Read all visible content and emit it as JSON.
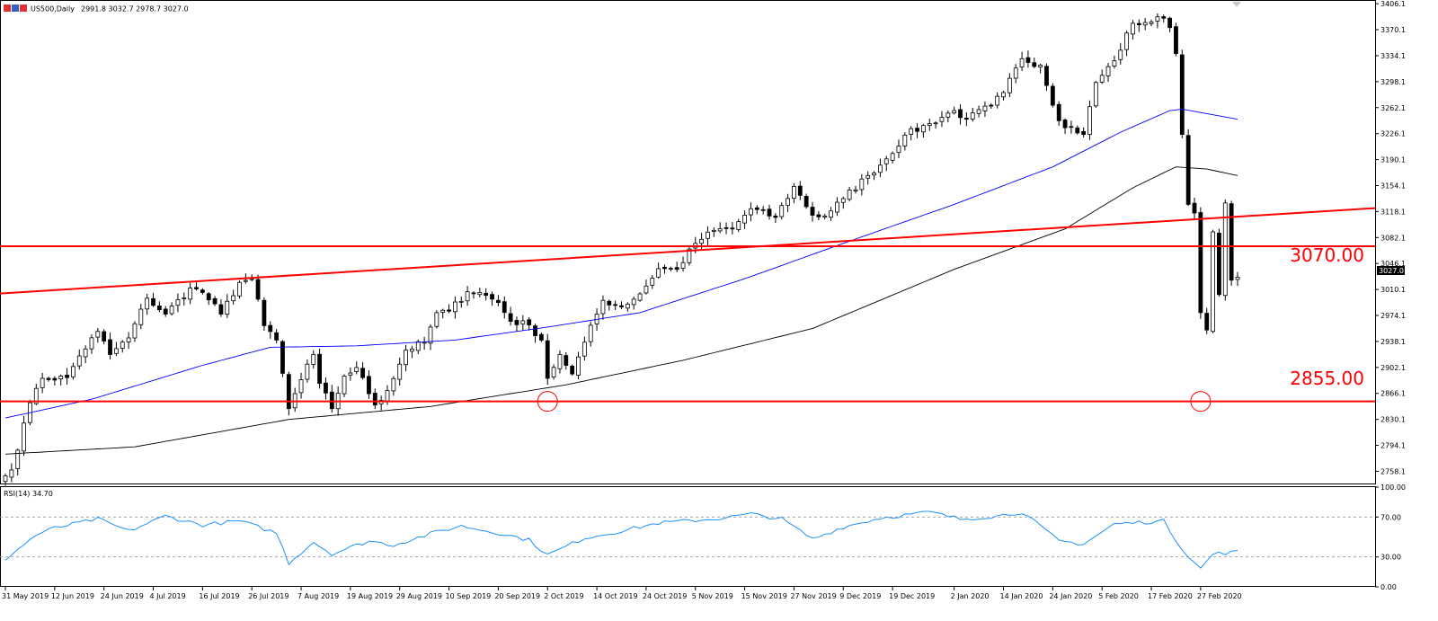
{
  "header": {
    "symbol_timeframe": "US500,Daily",
    "ohlc": "2991.8 3032.7 2978.7 3027.0"
  },
  "rsi_header": "RSI(14) 34.70",
  "price_axis_ticks": [
    "3406.1",
    "3370.1",
    "3334.1",
    "3298.1",
    "3262.1",
    "3226.1",
    "3190.1",
    "3154.1",
    "3118.1",
    "3082.1",
    "3046.1",
    "3010.1",
    "2974.1",
    "2938.1",
    "2902.1",
    "2866.1",
    "2830.1",
    "2794.1",
    "2758.1"
  ],
  "rsi_axis_ticks": [
    "100.00",
    "70.00",
    "30.00",
    "0.00"
  ],
  "current_price_label": "3027.0",
  "date_labels": [
    "31 May 2019",
    "12 Jun 2019",
    "24 Jun 2019",
    "4 Jul 2019",
    "16 Jul 2019",
    "26 Jul 2019",
    "7 Aug 2019",
    "19 Aug 2019",
    "29 Aug 2019",
    "10 Sep 2019",
    "20 Sep 2019",
    "2 Oct 2019",
    "14 Oct 2019",
    "24 Oct 2019",
    "5 Nov 2019",
    "15 Nov 2019",
    "27 Nov 2019",
    "9 Dec 2019",
    "19 Dec 2019",
    "2 Jan 2020",
    "14 Jan 2020",
    "24 Jan 2020",
    "5 Feb 2020",
    "17 Feb 2020",
    "27 Feb 2020"
  ],
  "annotations": {
    "resistance_label": "3070.00",
    "support_label": "2855.00"
  },
  "colors": {
    "annotation": "#ff0000",
    "ma_fast": "#0000ff",
    "ma_slow": "#000000",
    "rsi": "#1e90ff",
    "candle": "#000000"
  },
  "chart_data": {
    "type": "candlestick",
    "y_range": [
      2740,
      3410
    ],
    "rsi_range": [
      0,
      100
    ],
    "rsi_levels": [
      30,
      70
    ],
    "horizontal_levels": [
      3070,
      2855
    ],
    "trendline": {
      "from": [
        "31 May 2019",
        3005
      ],
      "to": [
        "6 Mar 2020",
        3111
      ]
    },
    "close_key": [
      [
        "31 May 2019",
        2752
      ],
      [
        "3 Jun 2019",
        2760
      ],
      [
        "5 Jun 2019",
        2825
      ],
      [
        "7 Jun 2019",
        2873
      ],
      [
        "10 Jun 2019",
        2887
      ],
      [
        "14 Jun 2019",
        2888
      ],
      [
        "18 Jun 2019",
        2918
      ],
      [
        "21 Jun 2019",
        2952
      ],
      [
        "25 Jun 2019",
        2920
      ],
      [
        "28 Jun 2019",
        2943
      ],
      [
        "3 Jul 2019",
        2998
      ],
      [
        "8 Jul 2019",
        2976
      ],
      [
        "12 Jul 2019",
        3012
      ],
      [
        "16 Jul 2019",
        3006
      ],
      [
        "19 Jul 2019",
        2976
      ],
      [
        "24 Jul 2019",
        3020
      ],
      [
        "26 Jul 2019",
        3025
      ],
      [
        "30 Jul 2019",
        2960
      ],
      [
        "1 Aug 2019",
        2940
      ],
      [
        "5 Aug 2019",
        2845
      ],
      [
        "7 Aug 2019",
        2885
      ],
      [
        "9 Aug 2019",
        2920
      ],
      [
        "12 Aug 2019",
        2880
      ],
      [
        "14 Aug 2019",
        2845
      ],
      [
        "16 Aug 2019",
        2890
      ],
      [
        "20 Aug 2019",
        2902
      ],
      [
        "23 Aug 2019",
        2850
      ],
      [
        "27 Aug 2019",
        2870
      ],
      [
        "30 Aug 2019",
        2926
      ],
      [
        "4 Sep 2019",
        2937
      ],
      [
        "6 Sep 2019",
        2978
      ],
      [
        "10 Sep 2019",
        2980
      ],
      [
        "13 Sep 2019",
        3007
      ],
      [
        "17 Sep 2019",
        3006
      ],
      [
        "20 Sep 2019",
        2992
      ],
      [
        "24 Sep 2019",
        2966
      ],
      [
        "27 Sep 2019",
        2961
      ],
      [
        "1 Oct 2019",
        2940
      ],
      [
        "2 Oct 2019",
        2887
      ],
      [
        "4 Oct 2019",
        2920
      ],
      [
        "8 Oct 2019",
        2893
      ],
      [
        "10 Oct 2019",
        2937
      ],
      [
        "15 Oct 2019",
        2995
      ],
      [
        "18 Oct 2019",
        2986
      ],
      [
        "23 Oct 2019",
        3004
      ],
      [
        "28 Oct 2019",
        3039
      ],
      [
        "31 Oct 2019",
        3038
      ],
      [
        "5 Nov 2019",
        3074
      ],
      [
        "8 Nov 2019",
        3092
      ],
      [
        "13 Nov 2019",
        3095
      ],
      [
        "18 Nov 2019",
        3122
      ],
      [
        "22 Nov 2019",
        3110
      ],
      [
        "27 Nov 2019",
        3153
      ],
      [
        "2 Dec 2019",
        3113
      ],
      [
        "4 Dec 2019",
        3112
      ],
      [
        "9 Dec 2019",
        3136
      ],
      [
        "13 Dec 2019",
        3168
      ],
      [
        "18 Dec 2019",
        3191
      ],
      [
        "23 Dec 2019",
        3224
      ],
      [
        "27 Dec 2019",
        3240
      ],
      [
        "2 Jan 2020",
        3258
      ],
      [
        "6 Jan 2020",
        3246
      ],
      [
        "10 Jan 2020",
        3265
      ],
      [
        "14 Jan 2020",
        3283
      ],
      [
        "17 Jan 2020",
        3330
      ],
      [
        "22 Jan 2020",
        3321
      ],
      [
        "27 Jan 2020",
        3244
      ],
      [
        "31 Jan 2020",
        3225
      ],
      [
        "4 Feb 2020",
        3297
      ],
      [
        "7 Feb 2020",
        3327
      ],
      [
        "12 Feb 2020",
        3379
      ],
      [
        "14 Feb 2020",
        3380
      ],
      [
        "19 Feb 2020",
        3386
      ],
      [
        "20 Feb 2020",
        3373
      ],
      [
        "21 Feb 2020",
        3337
      ],
      [
        "24 Feb 2020",
        3225
      ],
      [
        "25 Feb 2020",
        3128
      ],
      [
        "26 Feb 2020",
        3116
      ],
      [
        "27 Feb 2020",
        2978
      ],
      [
        "28 Feb 2020",
        2954
      ],
      [
        "2 Mar 2020",
        3090
      ],
      [
        "3 Mar 2020",
        3003
      ],
      [
        "4 Mar 2020",
        3130
      ],
      [
        "5 Mar 2020",
        3023
      ],
      [
        "6 Mar 2020",
        3027
      ]
    ],
    "ma_fast_key": [
      [
        "31 May 2019",
        2832
      ],
      [
        "20 Jun 2019",
        2858
      ],
      [
        "16 Jul 2019",
        2905
      ],
      [
        "31 Jul 2019",
        2930
      ],
      [
        "20 Aug 2019",
        2932
      ],
      [
        "11 Sep 2019",
        2940
      ],
      [
        "2 Oct 2019",
        2958
      ],
      [
        "23 Oct 2019",
        2978
      ],
      [
        "15 Nov 2019",
        3025
      ],
      [
        "9 Dec 2019",
        3074
      ],
      [
        "2 Jan 2020",
        3128
      ],
      [
        "24 Jan 2020",
        3180
      ],
      [
        "10 Feb 2020",
        3228
      ],
      [
        "20 Feb 2020",
        3258
      ],
      [
        "24 Feb 2020",
        3260
      ],
      [
        "6 Mar 2020",
        3246
      ]
    ],
    "ma_slow_key": [
      [
        "31 May 2019",
        2782
      ],
      [
        "1 Jul 2019",
        2792
      ],
      [
        "5 Aug 2019",
        2830
      ],
      [
        "5 Sep 2019",
        2848
      ],
      [
        "7 Oct 2019",
        2878
      ],
      [
        "1 Nov 2019",
        2912
      ],
      [
        "2 Dec 2019",
        2956
      ],
      [
        "2 Jan 2020",
        3038
      ],
      [
        "28 Jan 2020",
        3094
      ],
      [
        "12 Feb 2020",
        3151
      ],
      [
        "21 Feb 2020",
        3180
      ],
      [
        "28 Feb 2020",
        3177
      ],
      [
        "6 Mar 2020",
        3168
      ]
    ],
    "rsi_key": [
      [
        "31 May 2019",
        28
      ],
      [
        "7 Jun 2019",
        52
      ],
      [
        "12 Jun 2019",
        59
      ],
      [
        "21 Jun 2019",
        68
      ],
      [
        "28 Jun 2019",
        56
      ],
      [
        "8 Jul 2019",
        71
      ],
      [
        "16 Jul 2019",
        62
      ],
      [
        "24 Jul 2019",
        66
      ],
      [
        "1 Aug 2019",
        54
      ],
      [
        "5 Aug 2019",
        24
      ],
      [
        "9 Aug 2019",
        45
      ],
      [
        "14 Aug 2019",
        33
      ],
      [
        "22 Aug 2019",
        46
      ],
      [
        "28 Aug 2019",
        42
      ],
      [
        "6 Sep 2019",
        55
      ],
      [
        "12 Sep 2019",
        61
      ],
      [
        "20 Sep 2019",
        54
      ],
      [
        "27 Sep 2019",
        47
      ],
      [
        "2 Oct 2019",
        32
      ],
      [
        "10 Oct 2019",
        49
      ],
      [
        "18 Oct 2019",
        56
      ],
      [
        "28 Oct 2019",
        64
      ],
      [
        "8 Nov 2019",
        68
      ],
      [
        "18 Nov 2019",
        73
      ],
      [
        "25 Nov 2019",
        68
      ],
      [
        "2 Dec 2019",
        48
      ],
      [
        "9 Dec 2019",
        60
      ],
      [
        "17 Dec 2019",
        69
      ],
      [
        "27 Dec 2019",
        75
      ],
      [
        "3 Jan 2020",
        68
      ],
      [
        "13 Jan 2020",
        71
      ],
      [
        "17 Jan 2020",
        75
      ],
      [
        "27 Jan 2020",
        46
      ],
      [
        "31 Jan 2020",
        43
      ],
      [
        "7 Feb 2020",
        63
      ],
      [
        "19 Feb 2020",
        66
      ],
      [
        "24 Feb 2020",
        38
      ],
      [
        "27 Feb 2020",
        18
      ],
      [
        "2 Mar 2020",
        33
      ],
      [
        "6 Mar 2020",
        35
      ]
    ]
  }
}
